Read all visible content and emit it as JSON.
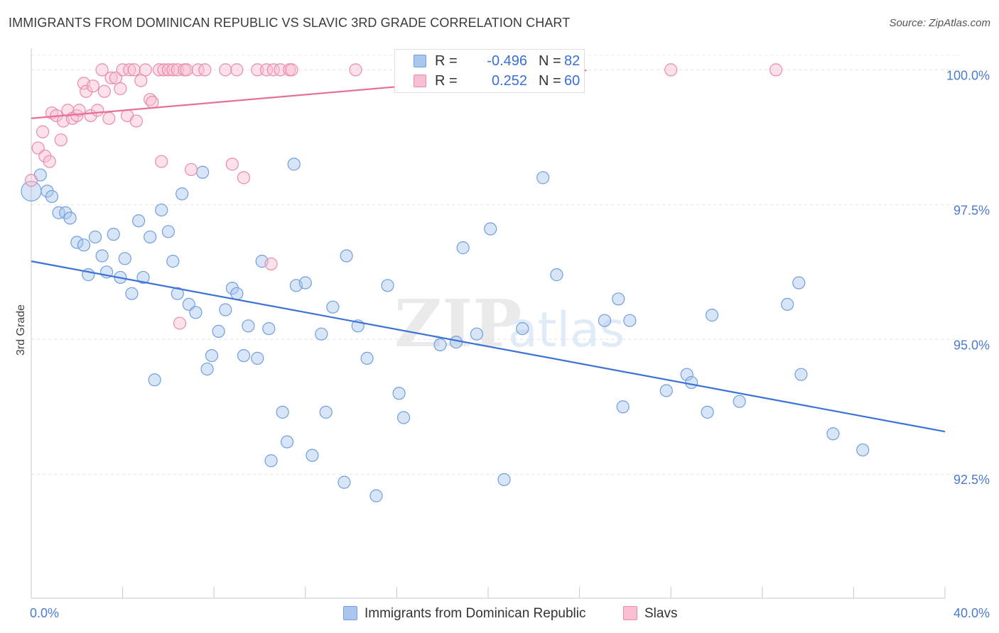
{
  "title": "IMMIGRANTS FROM DOMINICAN REPUBLIC VS SLAVIC 3RD GRADE CORRELATION CHART",
  "source": "Source: ZipAtlas.com",
  "watermark": {
    "zip": "ZIP",
    "atlas": "atlas"
  },
  "legend": {
    "rows": [
      {
        "r_key": "R =",
        "r_value": "-0.496",
        "n_key": "N =",
        "n_value": "82",
        "color": "#a9c6ee",
        "border": "#6f9fe0"
      },
      {
        "r_key": "R =",
        "r_value": "0.252",
        "n_key": "N =",
        "n_value": "60",
        "color": "#f7bfd0",
        "border": "#ec8aa9"
      }
    ]
  },
  "bottom_legend": [
    {
      "label": "Immigrants from Dominican Republic",
      "color": "#a9c6ee",
      "border": "#6f9fe0"
    },
    {
      "label": "Slavs",
      "color": "#f7bfd0",
      "border": "#ec8aa9"
    }
  ],
  "chart_data": {
    "type": "scatter",
    "title": "IMMIGRANTS FROM DOMINICAN REPUBLIC VS SLAVIC 3RD GRADE CORRELATION CHART",
    "xlabel": "",
    "ylabel": "3rd Grade",
    "xlim": [
      0,
      40
    ],
    "ylim": [
      90.2,
      100.4
    ],
    "x_tick_labels": [
      {
        "value": 0,
        "label": "0.0%"
      },
      {
        "value": 40,
        "label": "40.0%"
      }
    ],
    "y_tick_labels": [
      {
        "value": 100,
        "label": "100.0%"
      },
      {
        "value": 97.5,
        "label": "97.5%"
      },
      {
        "value": 95,
        "label": "95.0%"
      },
      {
        "value": 92.5,
        "label": "92.5%"
      }
    ],
    "grid": true,
    "legend_position": "top-center",
    "series": [
      {
        "name": "Immigrants from Dominican Republic",
        "color": "#6f9fe0",
        "fill": "rgba(169,198,238,0.45)",
        "trend": {
          "x": [
            0,
            40
          ],
          "y": [
            96.45,
            93.29
          ],
          "color": "#3a72d6"
        },
        "points": [
          [
            0.0,
            97.75
          ],
          [
            0.4,
            98.05
          ],
          [
            0.7,
            97.75
          ],
          [
            0.9,
            97.65
          ],
          [
            1.2,
            97.35
          ],
          [
            1.5,
            97.35
          ],
          [
            1.7,
            97.25
          ],
          [
            2.0,
            96.8
          ],
          [
            2.3,
            96.75
          ],
          [
            2.5,
            96.2
          ],
          [
            2.8,
            96.9
          ],
          [
            3.1,
            96.55
          ],
          [
            3.3,
            96.25
          ],
          [
            3.6,
            96.95
          ],
          [
            3.9,
            96.15
          ],
          [
            4.1,
            96.5
          ],
          [
            4.4,
            95.85
          ],
          [
            4.7,
            97.2
          ],
          [
            4.9,
            96.15
          ],
          [
            5.2,
            96.9
          ],
          [
            5.7,
            97.4
          ],
          [
            5.4,
            94.25
          ],
          [
            6.0,
            97.0
          ],
          [
            6.2,
            96.45
          ],
          [
            6.4,
            95.85
          ],
          [
            6.6,
            97.7
          ],
          [
            6.9,
            95.65
          ],
          [
            7.2,
            95.5
          ],
          [
            7.5,
            98.1
          ],
          [
            7.7,
            94.45
          ],
          [
            7.9,
            94.7
          ],
          [
            8.2,
            95.15
          ],
          [
            8.5,
            95.55
          ],
          [
            8.8,
            95.95
          ],
          [
            9.0,
            95.85
          ],
          [
            9.3,
            94.7
          ],
          [
            9.5,
            95.25
          ],
          [
            9.9,
            94.65
          ],
          [
            10.1,
            96.45
          ],
          [
            10.4,
            95.2
          ],
          [
            10.5,
            92.75
          ],
          [
            11.0,
            93.65
          ],
          [
            11.2,
            93.1
          ],
          [
            11.6,
            96.0
          ],
          [
            11.5,
            98.25
          ],
          [
            12.0,
            96.05
          ],
          [
            12.3,
            92.85
          ],
          [
            12.7,
            95.1
          ],
          [
            12.9,
            93.65
          ],
          [
            13.2,
            95.6
          ],
          [
            13.8,
            96.55
          ],
          [
            13.7,
            92.35
          ],
          [
            14.3,
            95.25
          ],
          [
            14.7,
            94.65
          ],
          [
            15.1,
            92.1
          ],
          [
            15.6,
            96.0
          ],
          [
            16.1,
            94.0
          ],
          [
            16.3,
            93.55
          ],
          [
            17.9,
            94.9
          ],
          [
            18.6,
            94.95
          ],
          [
            18.9,
            96.7
          ],
          [
            19.5,
            95.1
          ],
          [
            20.1,
            97.05
          ],
          [
            20.7,
            92.4
          ],
          [
            21.5,
            95.2
          ],
          [
            22.4,
            98.0
          ],
          [
            25.1,
            95.35
          ],
          [
            25.7,
            95.75
          ],
          [
            25.9,
            93.75
          ],
          [
            26.2,
            95.35
          ],
          [
            27.8,
            94.05
          ],
          [
            28.7,
            94.35
          ],
          [
            28.9,
            94.2
          ],
          [
            29.6,
            93.65
          ],
          [
            29.8,
            95.45
          ],
          [
            31.0,
            93.85
          ],
          [
            33.1,
            95.65
          ],
          [
            33.6,
            96.05
          ],
          [
            33.7,
            94.35
          ],
          [
            35.1,
            93.25
          ],
          [
            36.4,
            92.95
          ],
          [
            23.0,
            96.2
          ]
        ]
      },
      {
        "name": "Slavs",
        "color": "#ec8aa9",
        "fill": "rgba(247,191,208,0.45)",
        "trend": {
          "x": [
            0,
            24.3
          ],
          "y": [
            99.1,
            99.99
          ],
          "color": "#e7709a"
        },
        "points": [
          [
            0.0,
            97.95
          ],
          [
            0.3,
            98.55
          ],
          [
            0.5,
            98.85
          ],
          [
            0.6,
            98.4
          ],
          [
            0.8,
            98.3
          ],
          [
            0.9,
            99.2
          ],
          [
            1.1,
            99.15
          ],
          [
            1.3,
            98.7
          ],
          [
            1.4,
            99.05
          ],
          [
            1.6,
            99.25
          ],
          [
            1.8,
            99.1
          ],
          [
            2.0,
            99.15
          ],
          [
            2.1,
            99.25
          ],
          [
            2.3,
            99.75
          ],
          [
            2.4,
            99.6
          ],
          [
            2.6,
            99.15
          ],
          [
            2.7,
            99.7
          ],
          [
            2.9,
            99.25
          ],
          [
            3.1,
            100.0
          ],
          [
            3.2,
            99.6
          ],
          [
            3.4,
            99.1
          ],
          [
            3.5,
            99.85
          ],
          [
            3.7,
            99.85
          ],
          [
            3.9,
            99.65
          ],
          [
            4.0,
            100.0
          ],
          [
            4.2,
            99.15
          ],
          [
            4.3,
            100.0
          ],
          [
            4.5,
            100.0
          ],
          [
            4.6,
            99.05
          ],
          [
            4.8,
            99.8
          ],
          [
            5.0,
            100.0
          ],
          [
            5.2,
            99.45
          ],
          [
            5.3,
            99.4
          ],
          [
            5.6,
            100.0
          ],
          [
            5.8,
            100.0
          ],
          [
            5.7,
            98.3
          ],
          [
            6.0,
            100.0
          ],
          [
            6.2,
            100.0
          ],
          [
            6.4,
            100.0
          ],
          [
            6.5,
            95.3
          ],
          [
            6.7,
            100.0
          ],
          [
            6.8,
            100.0
          ],
          [
            7.0,
            98.15
          ],
          [
            7.3,
            100.0
          ],
          [
            7.6,
            100.0
          ],
          [
            8.5,
            100.0
          ],
          [
            8.8,
            98.25
          ],
          [
            9.0,
            100.0
          ],
          [
            9.3,
            98.0
          ],
          [
            9.9,
            100.0
          ],
          [
            10.3,
            100.0
          ],
          [
            10.5,
            96.4
          ],
          [
            10.6,
            100.0
          ],
          [
            10.9,
            100.0
          ],
          [
            11.3,
            100.0
          ],
          [
            11.4,
            100.0
          ],
          [
            14.2,
            100.0
          ],
          [
            17.0,
            100.0
          ],
          [
            28.0,
            100.0
          ],
          [
            32.6,
            100.0
          ]
        ]
      }
    ]
  }
}
